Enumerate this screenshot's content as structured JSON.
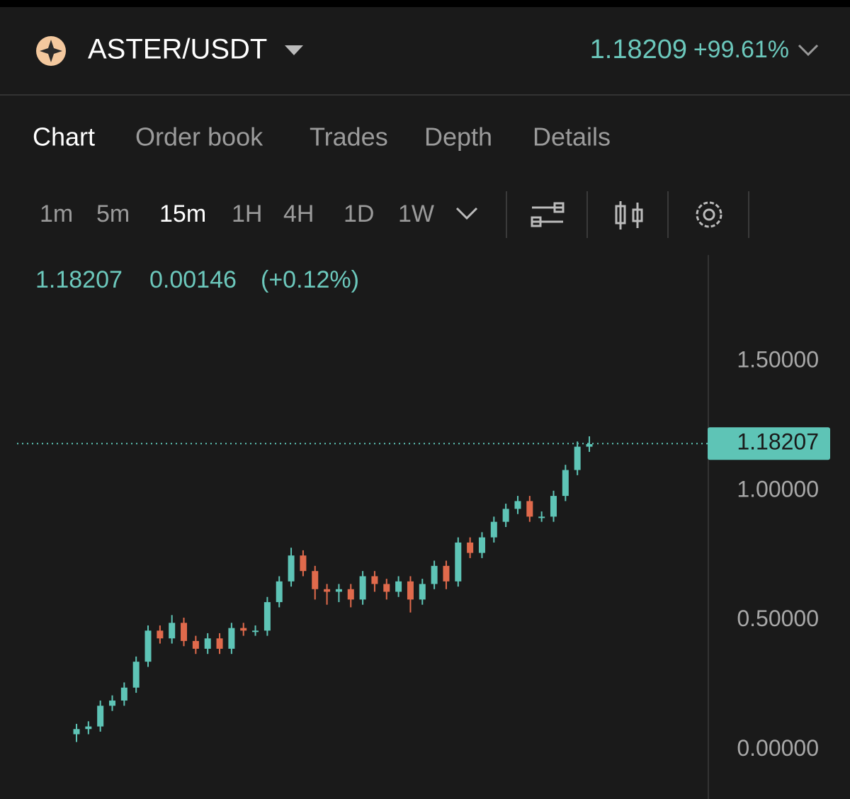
{
  "header": {
    "pair": "ASTER/USDT",
    "price": "1.18209",
    "change": "+99.61%"
  },
  "tabs": [
    "Chart",
    "Order book",
    "Trades",
    "Depth",
    "Details"
  ],
  "active_tab": 0,
  "intervals": [
    "1m",
    "5m",
    "15m",
    "1H",
    "4H",
    "1D",
    "1W"
  ],
  "active_interval": 2,
  "info": {
    "close": "1.18207",
    "change": "0.00146",
    "change_pct": "(+0.12%)"
  },
  "chart_data": {
    "type": "candlestick",
    "up_color": "#5ec4b6",
    "down_color": "#e06a4c",
    "open": [
      0.06,
      0.08,
      0.09,
      0.17,
      0.19,
      0.24,
      0.34,
      0.46,
      0.43,
      0.49,
      0.42,
      0.39,
      0.43,
      0.39,
      0.47,
      0.46,
      0.46,
      0.57,
      0.65,
      0.75,
      0.69,
      0.62,
      0.61,
      0.62,
      0.58,
      0.67,
      0.64,
      0.61,
      0.65,
      0.58,
      0.64,
      0.71,
      0.65,
      0.8,
      0.76,
      0.82,
      0.88,
      0.93,
      0.96,
      0.9,
      0.9,
      0.98,
      1.08,
      1.17
    ],
    "high": [
      0.1,
      0.11,
      0.19,
      0.21,
      0.26,
      0.36,
      0.48,
      0.48,
      0.52,
      0.51,
      0.44,
      0.45,
      0.45,
      0.49,
      0.49,
      0.48,
      0.59,
      0.67,
      0.78,
      0.77,
      0.71,
      0.64,
      0.64,
      0.64,
      0.69,
      0.69,
      0.66,
      0.67,
      0.67,
      0.66,
      0.73,
      0.73,
      0.82,
      0.82,
      0.84,
      0.9,
      0.95,
      0.98,
      0.98,
      0.92,
      1.0,
      1.1,
      1.19,
      1.21
    ],
    "low": [
      0.03,
      0.06,
      0.07,
      0.15,
      0.17,
      0.22,
      0.32,
      0.41,
      0.41,
      0.4,
      0.37,
      0.37,
      0.37,
      0.37,
      0.44,
      0.44,
      0.44,
      0.55,
      0.63,
      0.67,
      0.58,
      0.56,
      0.57,
      0.55,
      0.56,
      0.61,
      0.58,
      0.59,
      0.53,
      0.56,
      0.62,
      0.62,
      0.63,
      0.74,
      0.74,
      0.8,
      0.86,
      0.91,
      0.88,
      0.88,
      0.88,
      0.96,
      1.06,
      1.15
    ],
    "close": [
      0.08,
      0.09,
      0.17,
      0.19,
      0.24,
      0.34,
      0.46,
      0.43,
      0.49,
      0.42,
      0.39,
      0.43,
      0.39,
      0.47,
      0.46,
      0.46,
      0.57,
      0.65,
      0.75,
      0.69,
      0.62,
      0.61,
      0.62,
      0.58,
      0.67,
      0.64,
      0.61,
      0.65,
      0.58,
      0.64,
      0.71,
      0.65,
      0.8,
      0.76,
      0.82,
      0.88,
      0.93,
      0.96,
      0.9,
      0.9,
      0.98,
      1.08,
      1.17,
      1.18
    ],
    "ylim": [
      -0.19,
      1.91
    ],
    "yticks": [
      {
        "value": 0,
        "label": "0.00000"
      },
      {
        "value": 0.5,
        "label": "0.50000"
      },
      {
        "value": 1,
        "label": "1.00000"
      },
      {
        "value": 1.5,
        "label": "1.50000"
      }
    ],
    "last_price": 1.18207
  }
}
